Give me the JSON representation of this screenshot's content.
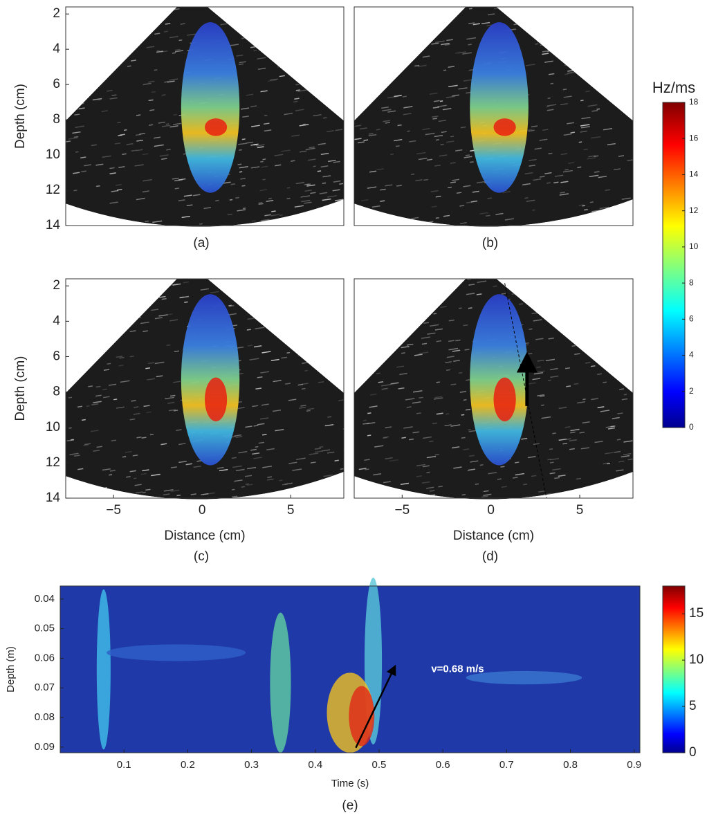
{
  "chart_data": [
    {
      "type": "image",
      "caption": "(a)",
      "ylabel": "Depth (cm)",
      "xlim": [
        -7.7,
        8
      ],
      "ylim": [
        1.6,
        14
      ],
      "yticks": [
        2,
        4,
        6,
        8,
        10,
        12,
        14
      ]
    },
    {
      "type": "image",
      "caption": "(b)"
    },
    {
      "type": "image",
      "caption": "(c)",
      "ylabel": "Depth (cm)",
      "xlabel": "Distance (cm)",
      "xlim": [
        -7.7,
        8
      ],
      "ylim": [
        1.6,
        14
      ],
      "yticks": [
        2,
        4,
        6,
        8,
        10,
        12,
        14
      ],
      "xticks": [
        {
          "value": -5,
          "label": "−5"
        },
        0,
        5
      ]
    },
    {
      "type": "image",
      "caption": "(d)",
      "xlabel": "Distance (cm)",
      "xlim": [
        -7.7,
        8
      ],
      "ylim": [
        1.6,
        14
      ],
      "xticks": [
        {
          "value": -5,
          "label": "−5"
        },
        0,
        5
      ]
    },
    {
      "type": "heatmap",
      "caption": "(e)",
      "ylabel": "Depth (m)",
      "xlabel": "Time (s)",
      "annotation": "v=0.68 m/s",
      "xlim": [
        0,
        0.909
      ],
      "ylim": [
        0.0356,
        0.0919
      ],
      "xticks": [
        0.1,
        0.2,
        0.3,
        0.4,
        0.5,
        0.6,
        0.7,
        0.8,
        0.9
      ],
      "yticks": [
        0.04,
        0.05,
        0.06,
        0.07,
        0.08,
        0.09
      ]
    },
    {
      "type": "colorbar",
      "title": "Hz/ms",
      "ylim": [
        0,
        18
      ],
      "yticks": [
        0,
        2,
        4,
        6,
        8,
        10,
        12,
        14,
        16,
        18
      ]
    },
    {
      "type": "colorbar",
      "ylim": [
        0,
        18
      ],
      "yticks": [
        0,
        5,
        10,
        15
      ]
    }
  ]
}
